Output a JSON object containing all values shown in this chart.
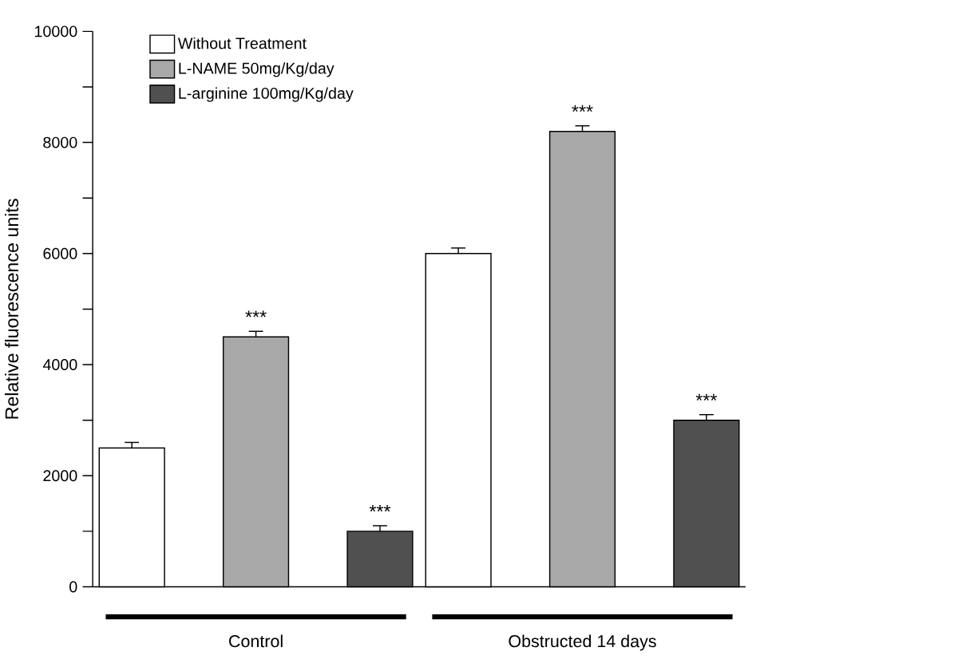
{
  "chart_data": {
    "type": "bar",
    "ylabel": "Relative fluorescence units",
    "categories": [
      "Control",
      "Obstructed 14 days"
    ],
    "series": [
      {
        "name": "Without Treatment",
        "color": "#ffffff",
        "values": [
          2500,
          6000
        ],
        "errors": [
          100,
          100
        ]
      },
      {
        "name": "L-NAME 50mg/Kg/day",
        "color": "#a8a8a8",
        "values": [
          4500,
          8200
        ],
        "errors": [
          100,
          100
        ],
        "value_labels": [
          "***",
          "***"
        ]
      },
      {
        "name": "L-arginine 100mg/Kg/day",
        "color": "#505050",
        "values": [
          1000,
          3000
        ],
        "errors": [
          100,
          100
        ],
        "value_labels": [
          "***",
          "***"
        ]
      }
    ],
    "ylim": [
      0,
      10000
    ],
    "yticks": [
      0,
      {
        "value": 1000,
        "label": null
      },
      2000,
      {
        "value": 3000,
        "label": null
      },
      4000,
      {
        "value": 5000,
        "label": null
      },
      6000,
      {
        "value": 7000,
        "label": null
      },
      8000,
      {
        "value": 9000,
        "label": null
      },
      10000
    ],
    "grid": false,
    "legend": "top left"
  }
}
